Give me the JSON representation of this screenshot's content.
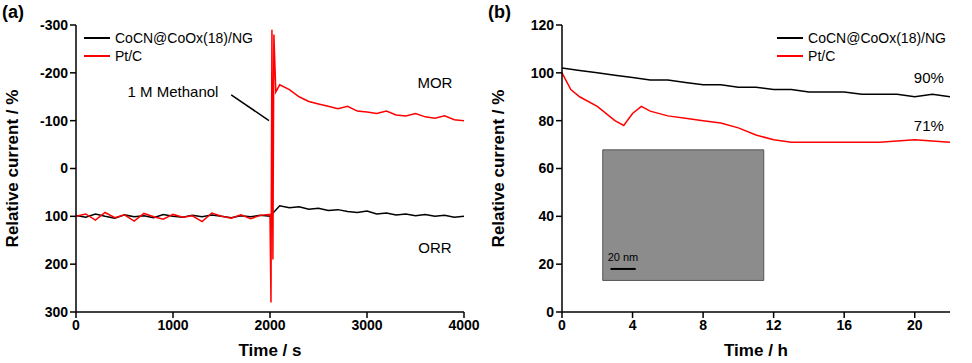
{
  "chart_data": [
    {
      "type": "line",
      "panel_label": "(a)",
      "x_label": "Time / s",
      "y_label": "Relative current / %",
      "xlim": [
        0,
        4000
      ],
      "xticks": [
        0,
        1000,
        2000,
        3000,
        4000
      ],
      "ylim": [
        300,
        -300
      ],
      "yticks": [
        -300,
        -200,
        -100,
        0,
        100,
        200,
        300
      ],
      "grid": false,
      "legend": "top left",
      "series": [
        {
          "name": "CoCN@CoOx(18)/NG",
          "color": "#000000",
          "x": [
            0,
            100,
            200,
            300,
            400,
            500,
            600,
            700,
            800,
            900,
            1000,
            1100,
            1200,
            1300,
            1400,
            1500,
            1600,
            1700,
            1800,
            1900,
            2000,
            2100,
            2200,
            2300,
            2400,
            2500,
            2600,
            2700,
            2800,
            2900,
            3000,
            3100,
            3200,
            3300,
            3400,
            3500,
            3600,
            3700,
            3800,
            3900,
            4000
          ],
          "values": [
            98,
            102,
            95,
            100,
            104,
            97,
            101,
            99,
            103,
            96,
            100,
            102,
            98,
            101,
            97,
            100,
            103,
            99,
            101,
            98,
            100,
            78,
            82,
            80,
            85,
            83,
            88,
            86,
            90,
            92,
            89,
            95,
            93,
            97,
            95,
            99,
            96,
            100,
            98,
            102,
            100
          ]
        },
        {
          "name": "Pt/C",
          "color": "#ff0000",
          "x": [
            0,
            100,
            200,
            300,
            400,
            500,
            600,
            700,
            800,
            900,
            1000,
            1100,
            1200,
            1300,
            1400,
            1500,
            1600,
            1700,
            1800,
            1900,
            2000,
            2010,
            2020,
            2030,
            2040,
            2060,
            2100,
            2200,
            2300,
            2400,
            2500,
            2600,
            2700,
            2800,
            2900,
            3000,
            3100,
            3200,
            3300,
            3400,
            3500,
            3600,
            3700,
            3800,
            3900,
            4000
          ],
          "values": [
            100,
            95,
            108,
            92,
            103,
            97,
            110,
            94,
            101,
            106,
            96,
            102,
            99,
            111,
            93,
            100,
            104,
            97,
            105,
            98,
            96,
            280,
            -290,
            190,
            -280,
            -160,
            -175,
            -165,
            -150,
            -140,
            -135,
            -130,
            -125,
            -130,
            -120,
            -118,
            -115,
            -120,
            -112,
            -110,
            -115,
            -108,
            -105,
            -110,
            -102,
            -100
          ]
        }
      ],
      "annotations": [
        {
          "text": "1 M Methanol",
          "x": 1000,
          "y": -160,
          "arrow_to": [
            1990,
            -100
          ]
        },
        {
          "text": "MOR",
          "x": 3700,
          "y": -180
        },
        {
          "text": "ORR",
          "x": 3700,
          "y": 165
        }
      ]
    },
    {
      "type": "line",
      "panel_label": "(b)",
      "x_label": "Time / h",
      "y_label": "Relative current / %",
      "xlim": [
        0,
        22
      ],
      "xticks": [
        0,
        4,
        8,
        12,
        16,
        20
      ],
      "ylim": [
        0,
        120
      ],
      "yticks": [
        0,
        20,
        40,
        60,
        80,
        100,
        120
      ],
      "grid": false,
      "legend": "top right",
      "series": [
        {
          "name": "CoCN@CoOx(18)/NG",
          "color": "#000000",
          "x": [
            0,
            1,
            2,
            3,
            4,
            5,
            6,
            7,
            8,
            9,
            10,
            11,
            12,
            13,
            14,
            15,
            16,
            17,
            18,
            19,
            20,
            21,
            22
          ],
          "values": [
            102,
            101,
            100,
            99,
            98,
            97,
            97,
            96,
            95,
            95,
            94,
            94,
            93,
            93,
            92,
            92,
            92,
            91,
            91,
            91,
            90,
            91,
            90
          ]
        },
        {
          "name": "Pt/C",
          "color": "#ff0000",
          "x": [
            0,
            0.5,
            1,
            2,
            3,
            3.5,
            4,
            4.5,
            5,
            6,
            7,
            8,
            9,
            10,
            11,
            12,
            13,
            14,
            16,
            18,
            20,
            22
          ],
          "values": [
            100,
            93,
            90,
            86,
            80,
            78,
            83,
            86,
            84,
            82,
            81,
            80,
            79,
            77,
            74,
            72,
            71,
            71,
            71,
            71,
            72,
            71
          ]
        }
      ],
      "annotations": [
        {
          "text": "90%",
          "x": 20.8,
          "y": 98
        },
        {
          "text": "71%",
          "x": 20.8,
          "y": 78
        }
      ],
      "inset": {
        "scale_bar": "20 nm"
      }
    }
  ]
}
